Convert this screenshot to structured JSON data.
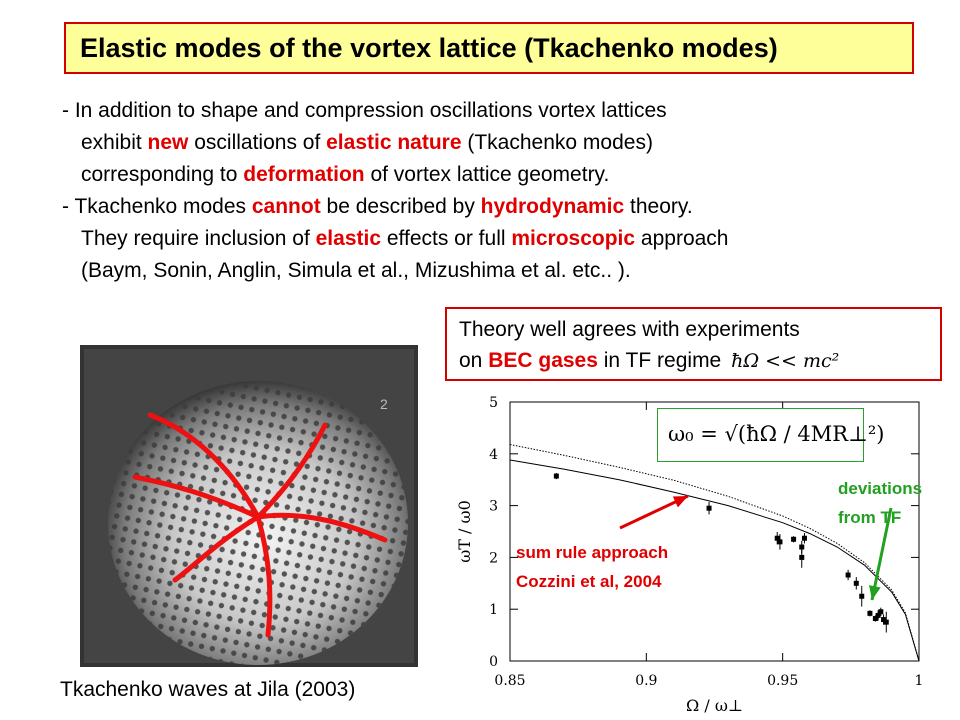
{
  "title": "Elastic modes of the vortex lattice (Tkachenko modes)",
  "bullets": [
    [
      {
        "t": "- In addition to shape and compression oscillations vortex lattices"
      }
    ],
    [
      {
        "t": "exhibit  "
      },
      {
        "t": "new",
        "red": true
      },
      {
        "t": " oscillations of "
      },
      {
        "t": "elastic nature",
        "red": true
      },
      {
        "t": " (Tkachenko modes)"
      }
    ],
    [
      {
        "t": "corresponding to "
      },
      {
        "t": "deformation",
        "red": true
      },
      {
        "t": " of  vortex lattice geometry."
      }
    ],
    [
      {
        "t": "- Tkachenko modes "
      },
      {
        "t": "cannot",
        "red": true
      },
      {
        "t": " be described by "
      },
      {
        "t": "hydrodynamic",
        "red": true
      },
      {
        "t": " theory."
      }
    ],
    [
      {
        "t": "They require inclusion of "
      },
      {
        "t": "elastic",
        "red": true
      },
      {
        "t": " effects or full "
      },
      {
        "t": "microscopic",
        "red": true
      },
      {
        "t": " approach"
      }
    ],
    [
      {
        "t": "(Baym, Sonin, Anglin, Simula et al., Mizushima et al. etc.. )."
      }
    ]
  ],
  "theory_box": {
    "line1": "Theory well agrees with experiments",
    "line2_prefix": "on ",
    "line2_red": "BEC gases",
    "line2_suffix": " in TF regime",
    "condition": "ħΩ << mc²"
  },
  "photo_caption": "Tkachenko waves at Jila (2003)",
  "photo_mark": "2",
  "formula": "ω₀ = √(ħΩ / 4MR⊥²)",
  "annotations": {
    "green": [
      "deviations",
      "from TF"
    ],
    "red": [
      "sum rule approach",
      "Cozzini et al, 2004"
    ]
  },
  "colors": {
    "accent_red": "#e00000",
    "title_bg": "#ffff99",
    "curve_arrow": "#e00000",
    "green": "#21a021"
  },
  "chart_data": {
    "type": "scatter",
    "xlabel": "Ω / ω⊥",
    "ylabel": "ωT / ω0",
    "xlim": [
      0.85,
      1.0
    ],
    "ylim": [
      0,
      5
    ],
    "x_ticks": [
      "0.85",
      "0.9",
      "0.95",
      "1"
    ],
    "y_ticks": [
      "0",
      "1",
      "2",
      "3",
      "4",
      "5"
    ],
    "series": [
      {
        "type": "scatter",
        "points": [
          {
            "x": 0.867,
            "y": 3.57,
            "err": 0.06
          },
          {
            "x": 0.923,
            "y": 2.95,
            "err": 0.12
          },
          {
            "x": 0.948,
            "y": 2.37,
            "err": 0.12
          },
          {
            "x": 0.949,
            "y": 2.3,
            "err": 0.15
          },
          {
            "x": 0.954,
            "y": 2.35,
            "err": 0.06
          },
          {
            "x": 0.957,
            "y": 2.2,
            "err": 0.12
          },
          {
            "x": 0.957,
            "y": 2.0,
            "err": 0.2
          },
          {
            "x": 0.958,
            "y": 2.37,
            "err": 0.1
          },
          {
            "x": 0.974,
            "y": 1.66,
            "err": 0.1
          },
          {
            "x": 0.977,
            "y": 1.5,
            "err": 0.12
          },
          {
            "x": 0.979,
            "y": 1.25,
            "err": 0.2
          },
          {
            "x": 0.982,
            "y": 0.92,
            "err": 0.06
          },
          {
            "x": 0.984,
            "y": 0.82,
            "err": 0.06
          },
          {
            "x": 0.985,
            "y": 0.88,
            "err": 0.1
          },
          {
            "x": 0.986,
            "y": 0.95,
            "err": 0.08
          },
          {
            "x": 0.987,
            "y": 0.8,
            "err": 0.1
          },
          {
            "x": 0.988,
            "y": 0.75,
            "err": 0.2
          }
        ]
      },
      {
        "type": "line",
        "style": "solid",
        "x": [
          0.85,
          0.87,
          0.89,
          0.91,
          0.93,
          0.95,
          0.96,
          0.97,
          0.98,
          0.99,
          0.995,
          1.0
        ],
        "y": [
          3.88,
          3.7,
          3.5,
          3.26,
          3.0,
          2.67,
          2.46,
          2.2,
          1.85,
          1.33,
          0.9,
          0.0
        ]
      },
      {
        "type": "line",
        "style": "dotted",
        "x": [
          0.85,
          0.87,
          0.89,
          0.91,
          0.93,
          0.95,
          0.96,
          0.97,
          0.98,
          0.99,
          0.995,
          1.0
        ],
        "y": [
          4.18,
          3.97,
          3.74,
          3.49,
          3.18,
          2.8,
          2.56,
          2.27,
          1.9,
          1.37,
          0.93,
          0.0
        ]
      }
    ]
  }
}
